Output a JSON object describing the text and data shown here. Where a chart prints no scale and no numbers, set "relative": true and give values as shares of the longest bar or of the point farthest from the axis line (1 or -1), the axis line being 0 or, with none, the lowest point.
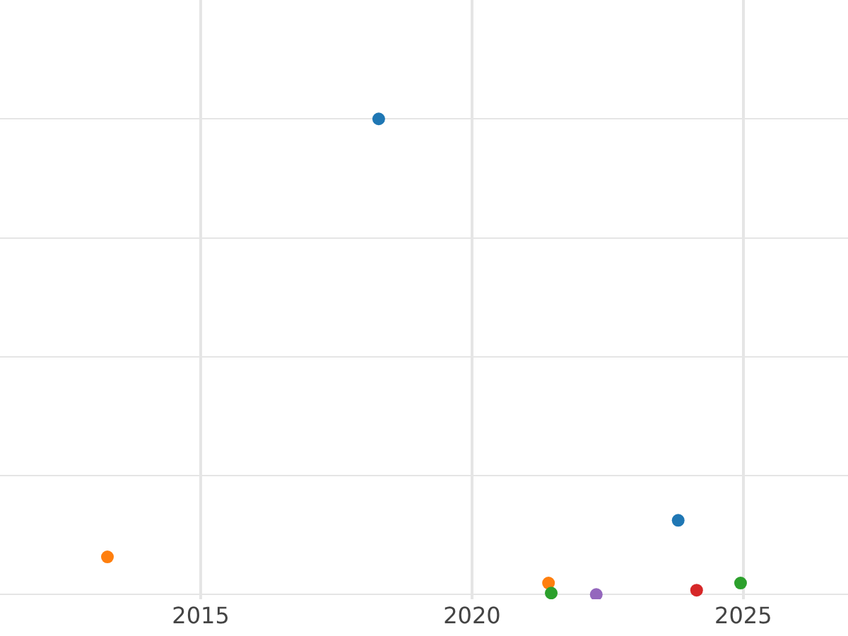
{
  "chart_data": {
    "type": "scatter",
    "relative": true,
    "marker": "circle",
    "grid": true,
    "tick_labels": "x",
    "xlim": [
      2011.3,
      2026.93
    ],
    "xticks": [
      2015,
      2020,
      2025
    ],
    "series": [
      {
        "color": "#1f77b4",
        "x": [
          2018.28,
          2023.8
        ],
        "values": [
          1,
          0.156
        ]
      },
      {
        "color": "#ff7f0e",
        "x": [
          2013.28,
          2021.41
        ],
        "values": [
          0.079,
          0.024
        ]
      },
      {
        "color": "#2ca02c",
        "x": [
          2021.46,
          2024.95
        ],
        "values": [
          0.003,
          0.024
        ]
      },
      {
        "color": "#9467bd",
        "x": [
          2022.29
        ],
        "values": [
          0
        ]
      },
      {
        "color": "#d62728",
        "x": [
          2024.14
        ],
        "values": [
          0.009
        ]
      }
    ]
  }
}
